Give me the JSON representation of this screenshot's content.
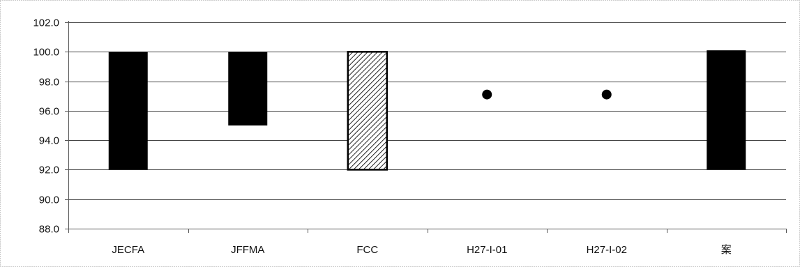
{
  "chart_data": {
    "type": "bar",
    "subtype": "floating-range",
    "title": "",
    "xlabel": "",
    "ylabel": "",
    "ylim": [
      88.0,
      102.0
    ],
    "ytick_step": 2.0,
    "yticks": [
      "88.0",
      "90.0",
      "92.0",
      "94.0",
      "96.0",
      "98.0",
      "100.0",
      "102.0"
    ],
    "grid": true,
    "legend": "none",
    "categories": [
      "JECFA",
      "JFFMA",
      "FCC",
      "H27-I-01",
      "H27-I-02",
      "案"
    ],
    "ranges": [
      {
        "category": "JECFA",
        "low": 92.0,
        "high": 100.0,
        "fill": "solid"
      },
      {
        "category": "JFFMA",
        "low": 95.0,
        "high": 100.0,
        "fill": "solid"
      },
      {
        "category": "FCC",
        "low": 92.0,
        "high": 100.0,
        "fill": "hatched"
      },
      {
        "category": "案",
        "low": 92.0,
        "high": 100.1,
        "fill": "solid"
      }
    ],
    "points": [
      {
        "category": "H27-I-01",
        "value": 97.1
      },
      {
        "category": "H27-I-02",
        "value": 97.1
      }
    ],
    "colors": {
      "bar": "#000000",
      "hatch_bg": "#ffffff",
      "grid": "#444444",
      "axis": "#555555"
    }
  }
}
